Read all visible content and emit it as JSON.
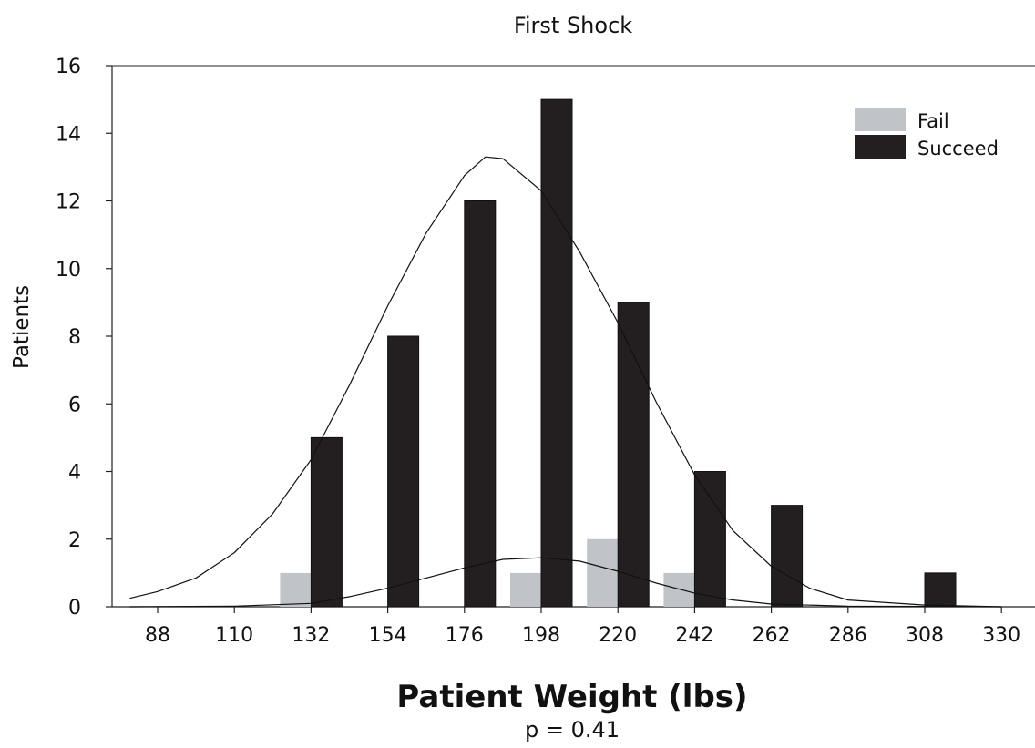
{
  "chart_data": {
    "type": "bar",
    "title": "First Shock",
    "xlabel": "Patient Weight (lbs)",
    "ylabel": "Patients",
    "annotation": "p = 0.41",
    "categories": [
      "88",
      "110",
      "132",
      "154",
      "176",
      "198",
      "220",
      "242",
      "262",
      "286",
      "308",
      "330"
    ],
    "series": [
      {
        "name": "Fail",
        "color": "#c0c4c9",
        "values": [
          0,
          0,
          1,
          0,
          0,
          1,
          2,
          1,
          0,
          0,
          0,
          0
        ]
      },
      {
        "name": "Succeed",
        "color": "#231f20",
        "values": [
          0,
          0,
          5,
          8,
          12,
          15,
          9,
          4,
          3,
          0,
          1,
          0
        ]
      }
    ],
    "ylim": [
      0,
      16
    ],
    "yticks": [
      0,
      2,
      4,
      6,
      8,
      10,
      12,
      14,
      16
    ],
    "legend_position": "top-right",
    "fitted_curves": [
      {
        "series": "Succeed",
        "points": [
          [
            80,
            0.25
          ],
          [
            88,
            0.45
          ],
          [
            99,
            0.85
          ],
          [
            110,
            1.6
          ],
          [
            121,
            2.75
          ],
          [
            132,
            4.35
          ],
          [
            143,
            6.55
          ],
          [
            154,
            8.9
          ],
          [
            165,
            11.05
          ],
          [
            176,
            12.75
          ],
          [
            182,
            13.3
          ],
          [
            187,
            13.25
          ],
          [
            198,
            12.3
          ],
          [
            209,
            10.5
          ],
          [
            220,
            8.4
          ],
          [
            231,
            6.05
          ],
          [
            242,
            3.9
          ],
          [
            252,
            2.25
          ],
          [
            262,
            1.2
          ],
          [
            274,
            0.55
          ],
          [
            286,
            0.2
          ],
          [
            308,
            0.05
          ],
          [
            330,
            0.0
          ]
        ]
      },
      {
        "series": "Fail",
        "points": [
          [
            80,
            0.0
          ],
          [
            110,
            0.02
          ],
          [
            132,
            0.1
          ],
          [
            143,
            0.3
          ],
          [
            154,
            0.55
          ],
          [
            165,
            0.85
          ],
          [
            176,
            1.15
          ],
          [
            187,
            1.4
          ],
          [
            198,
            1.45
          ],
          [
            209,
            1.35
          ],
          [
            220,
            1.05
          ],
          [
            231,
            0.7
          ],
          [
            242,
            0.4
          ],
          [
            252,
            0.2
          ],
          [
            262,
            0.08
          ],
          [
            286,
            0.02
          ],
          [
            330,
            0.0
          ]
        ]
      }
    ]
  }
}
